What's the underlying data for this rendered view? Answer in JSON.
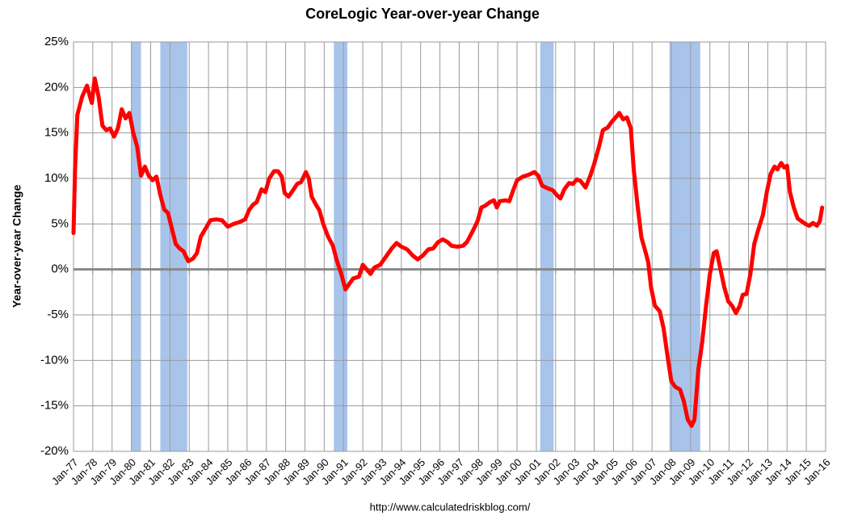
{
  "chart_data": {
    "type": "line",
    "title": "CoreLogic Year-over-year Change",
    "y_label": "Year-over-year Change",
    "footer": "http://www.calculatedriskblog.com/",
    "x": [
      1977.0,
      1977.08,
      1977.2,
      1977.45,
      1977.7,
      1977.85,
      1977.95,
      1978.1,
      1978.3,
      1978.5,
      1978.7,
      1978.9,
      1979.1,
      1979.3,
      1979.5,
      1979.7,
      1979.9,
      1980.1,
      1980.3,
      1980.5,
      1980.7,
      1980.9,
      1981.1,
      1981.3,
      1981.5,
      1981.7,
      1981.9,
      1982.1,
      1982.3,
      1982.5,
      1982.7,
      1982.95,
      1983.2,
      1983.4,
      1983.6,
      1983.85,
      1984.1,
      1984.4,
      1984.7,
      1985.0,
      1985.3,
      1985.6,
      1985.9,
      1986.1,
      1986.3,
      1986.5,
      1986.75,
      1986.95,
      1987.15,
      1987.4,
      1987.6,
      1987.8,
      1987.95,
      1988.15,
      1988.35,
      1988.6,
      1988.8,
      1989.05,
      1989.2,
      1989.35,
      1989.55,
      1989.75,
      1989.95,
      1990.2,
      1990.45,
      1990.65,
      1990.9,
      1991.1,
      1991.3,
      1991.5,
      1991.8,
      1992.0,
      1992.2,
      1992.4,
      1992.6,
      1992.9,
      1993.2,
      1993.5,
      1993.75,
      1994.0,
      1994.3,
      1994.6,
      1994.85,
      1995.1,
      1995.4,
      1995.65,
      1995.9,
      1996.15,
      1996.4,
      1996.6,
      1996.9,
      1997.2,
      1997.4,
      1997.7,
      1997.95,
      1998.15,
      1998.35,
      1998.6,
      1998.8,
      1998.95,
      1999.1,
      1999.4,
      1999.6,
      1999.8,
      2000.0,
      2000.3,
      2000.6,
      2000.9,
      2001.1,
      2001.3,
      2001.6,
      2001.85,
      2002.05,
      2002.25,
      2002.45,
      2002.7,
      2002.9,
      2003.1,
      2003.3,
      2003.55,
      2003.8,
      2004.0,
      2004.25,
      2004.45,
      2004.7,
      2004.9,
      2005.15,
      2005.3,
      2005.5,
      2005.7,
      2005.9,
      2006.05,
      2006.25,
      2006.45,
      2006.65,
      2006.8,
      2006.95,
      2007.15,
      2007.4,
      2007.6,
      2007.8,
      2008.0,
      2008.2,
      2008.45,
      2008.65,
      2008.85,
      2009.05,
      2009.2,
      2009.4,
      2009.6,
      2009.8,
      2010.0,
      2010.2,
      2010.35,
      2010.55,
      2010.75,
      2010.95,
      2011.15,
      2011.35,
      2011.55,
      2011.7,
      2011.9,
      2012.1,
      2012.3,
      2012.5,
      2012.75,
      2012.95,
      2013.15,
      2013.35,
      2013.5,
      2013.7,
      2013.85,
      2014.0,
      2014.15,
      2014.35,
      2014.55,
      2014.75,
      2014.95,
      2015.15,
      2015.35,
      2015.55,
      2015.7,
      2015.82
    ],
    "series": [
      {
        "color": "#ff0000",
        "values": [
          4,
          11,
          17,
          19,
          20.2,
          19,
          18.3,
          21,
          19,
          15.8,
          15.3,
          15.5,
          14.6,
          15.5,
          17.6,
          16.6,
          17.2,
          15,
          13.5,
          10.3,
          11.3,
          10.3,
          9.8,
          10.2,
          8.2,
          6.6,
          6.2,
          4.5,
          2.8,
          2.3,
          2.0,
          0.9,
          1.2,
          1.8,
          3.6,
          4.5,
          5.4,
          5.5,
          5.4,
          4.7,
          5.0,
          5.2,
          5.5,
          6.5,
          7.1,
          7.4,
          8.8,
          8.5,
          10.0,
          10.8,
          10.8,
          10.2,
          8.4,
          8.0,
          8.6,
          9.4,
          9.6,
          10.7,
          10.0,
          8.0,
          7.2,
          6.5,
          5.0,
          3.6,
          2.6,
          1.0,
          -0.6,
          -2.2,
          -1.6,
          -1.0,
          -0.8,
          0.5,
          0.0,
          -0.5,
          0.2,
          0.5,
          1.4,
          2.3,
          2.9,
          2.5,
          2.2,
          1.5,
          1.1,
          1.5,
          2.2,
          2.3,
          3.0,
          3.3,
          3.0,
          2.6,
          2.5,
          2.6,
          3.0,
          4.2,
          5.3,
          6.8,
          7.0,
          7.4,
          7.6,
          6.8,
          7.5,
          7.6,
          7.5,
          8.7,
          9.8,
          10.2,
          10.4,
          10.7,
          10.3,
          9.2,
          8.9,
          8.7,
          8.2,
          7.8,
          8.8,
          9.5,
          9.4,
          9.9,
          9.7,
          9.0,
          10.3,
          11.6,
          13.5,
          15.3,
          15.6,
          16.2,
          16.8,
          17.2,
          16.5,
          16.7,
          15.5,
          11,
          7,
          3.5,
          2.0,
          0.8,
          -2.0,
          -4.0,
          -4.6,
          -6.5,
          -9.5,
          -12.3,
          -12.9,
          -13.2,
          -14.5,
          -16.5,
          -17.2,
          -16.5,
          -11.0,
          -8.0,
          -4.0,
          -0.5,
          1.8,
          2.0,
          0.0,
          -2.0,
          -3.5,
          -4.0,
          -4.8,
          -4.0,
          -2.8,
          -2.7,
          -0.5,
          2.8,
          4.3,
          6.0,
          8.5,
          10.5,
          11.3,
          11.0,
          11.7,
          11.2,
          11.4,
          8.5,
          6.8,
          5.6,
          5.3,
          5.0,
          4.8,
          5.1,
          4.8,
          5.3,
          6.8
        ]
      }
    ],
    "recessions": [
      [
        1980.0,
        1980.5
      ],
      [
        1981.5,
        1982.9
      ],
      [
        1990.5,
        1991.2
      ],
      [
        2001.2,
        2001.9
      ],
      [
        2007.9,
        2009.5
      ]
    ],
    "recession_color": "#a9c4eb",
    "xlim": [
      1977,
      2016
    ],
    "xticks": [
      {
        "value": 1977,
        "label": "Jan-77"
      },
      {
        "value": 1978,
        "label": "Jan-78"
      },
      {
        "value": 1979,
        "label": "Jan-79"
      },
      {
        "value": 1980,
        "label": "Jan-80"
      },
      {
        "value": 1981,
        "label": "Jan-81"
      },
      {
        "value": 1982,
        "label": "Jan-82"
      },
      {
        "value": 1983,
        "label": "Jan-83"
      },
      {
        "value": 1984,
        "label": "Jan-84"
      },
      {
        "value": 1985,
        "label": "Jan-85"
      },
      {
        "value": 1986,
        "label": "Jan-86"
      },
      {
        "value": 1987,
        "label": "Jan-87"
      },
      {
        "value": 1988,
        "label": "Jan-88"
      },
      {
        "value": 1989,
        "label": "Jan-89"
      },
      {
        "value": 1990,
        "label": "Jan-90"
      },
      {
        "value": 1991,
        "label": "Jan-91"
      },
      {
        "value": 1992,
        "label": "Jan-92"
      },
      {
        "value": 1993,
        "label": "Jan-93"
      },
      {
        "value": 1994,
        "label": "Jan-94"
      },
      {
        "value": 1995,
        "label": "Jan-95"
      },
      {
        "value": 1996,
        "label": "Jan-96"
      },
      {
        "value": 1997,
        "label": "Jan-97"
      },
      {
        "value": 1998,
        "label": "Jan-98"
      },
      {
        "value": 1999,
        "label": "Jan-99"
      },
      {
        "value": 2000,
        "label": "Jan-00"
      },
      {
        "value": 2001,
        "label": "Jan-01"
      },
      {
        "value": 2002,
        "label": "Jan-02"
      },
      {
        "value": 2003,
        "label": "Jan-03"
      },
      {
        "value": 2004,
        "label": "Jan-04"
      },
      {
        "value": 2005,
        "label": "Jan-05"
      },
      {
        "value": 2006,
        "label": "Jan-06"
      },
      {
        "value": 2007,
        "label": "Jan-07"
      },
      {
        "value": 2008,
        "label": "Jan-08"
      },
      {
        "value": 2009,
        "label": "Jan-09"
      },
      {
        "value": 2010,
        "label": "Jan-10"
      },
      {
        "value": 2011,
        "label": "Jan-11"
      },
      {
        "value": 2012,
        "label": "Jan-12"
      },
      {
        "value": 2013,
        "label": "Jan-13"
      },
      {
        "value": 2014,
        "label": "Jan-14"
      },
      {
        "value": 2015,
        "label": "Jan-15"
      },
      {
        "value": 2016,
        "label": "Jan-16"
      }
    ],
    "ylim": [
      -20,
      25
    ],
    "yticks": [
      {
        "value": -20,
        "label": "-20%"
      },
      {
        "value": -15,
        "label": "-15%"
      },
      {
        "value": -10,
        "label": "-10%"
      },
      {
        "value": -5,
        "label": "-5%"
      },
      {
        "value": 0,
        "label": "0%"
      },
      {
        "value": 5,
        "label": "5%"
      },
      {
        "value": 10,
        "label": "10%"
      },
      {
        "value": 15,
        "label": "15%"
      },
      {
        "value": 20,
        "label": "20%"
      },
      {
        "value": 25,
        "label": "25%"
      }
    ],
    "grid": true
  }
}
